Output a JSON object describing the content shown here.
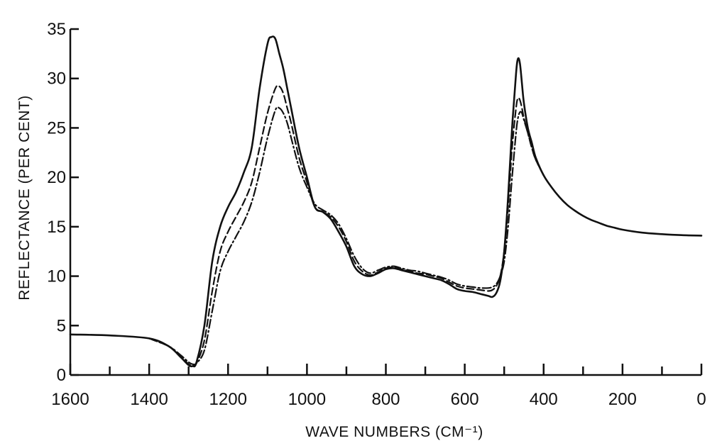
{
  "chart_data": {
    "type": "line",
    "xlabel": "WAVE NUMBERS (CM⁻¹)",
    "ylabel": "REFLECTANCE (PER CENT)",
    "xlim": [
      1600,
      0
    ],
    "ylim": [
      0,
      35
    ],
    "x_ticks": [
      1600,
      1400,
      1200,
      1000,
      800,
      600,
      400,
      200,
      0
    ],
    "y_ticks": [
      0,
      5,
      10,
      15,
      20,
      25,
      30,
      35
    ],
    "x_tick_labels": [
      "1600",
      "1400",
      "1200",
      "1000",
      "800",
      "600",
      "400",
      "200",
      "0"
    ],
    "y_tick_labels": [
      "0",
      "5",
      "10",
      "15",
      "20",
      "25",
      "30",
      "35"
    ],
    "grid": false,
    "series": [
      {
        "style": "solid",
        "x": [
          1600,
          1500,
          1400,
          1350,
          1320,
          1300,
          1290,
          1280,
          1260,
          1240,
          1220,
          1200,
          1180,
          1160,
          1140,
          1120,
          1100,
          1090,
          1080,
          1070,
          1060,
          1050,
          1040,
          1020,
          1000,
          980,
          960,
          940,
          920,
          900,
          880,
          860,
          840,
          820,
          800,
          780,
          760,
          740,
          720,
          700,
          680,
          660,
          640,
          620,
          600,
          580,
          560,
          540,
          530,
          520,
          510,
          500,
          490,
          480,
          470,
          465,
          460,
          455,
          450,
          440,
          430,
          420,
          400,
          380,
          360,
          340,
          320,
          300,
          280,
          260,
          240,
          220,
          200,
          150,
          100,
          50,
          0
        ],
        "y": [
          4.1,
          4.0,
          3.7,
          2.9,
          1.8,
          1.0,
          0.9,
          1.3,
          5.0,
          11.5,
          15.0,
          17.0,
          18.5,
          20.5,
          23.0,
          29.0,
          33.5,
          34.2,
          34.0,
          32.5,
          31.0,
          29.0,
          27.0,
          23.0,
          20.0,
          17.0,
          16.5,
          15.8,
          14.5,
          13.0,
          11.0,
          10.2,
          10.0,
          10.3,
          10.7,
          10.8,
          10.6,
          10.4,
          10.2,
          10.0,
          9.8,
          9.6,
          9.2,
          8.7,
          8.5,
          8.4,
          8.2,
          8.0,
          7.9,
          8.3,
          9.5,
          12.5,
          18.0,
          25.0,
          30.5,
          32.0,
          31.5,
          29.5,
          27.5,
          25.0,
          23.5,
          22.0,
          20.2,
          19.0,
          18.0,
          17.2,
          16.6,
          16.1,
          15.7,
          15.4,
          15.1,
          14.9,
          14.7,
          14.4,
          14.25,
          14.15,
          14.1
        ]
      },
      {
        "style": "dashed",
        "x": [
          1400,
          1350,
          1320,
          1300,
          1290,
          1280,
          1260,
          1240,
          1220,
          1200,
          1180,
          1160,
          1140,
          1120,
          1100,
          1080,
          1070,
          1060,
          1050,
          1040,
          1020,
          1000,
          980,
          960,
          940,
          920,
          900,
          880,
          860,
          840,
          820,
          800,
          780,
          760,
          740,
          720,
          700,
          680,
          660,
          640,
          620,
          600,
          580,
          560,
          540,
          530,
          520,
          510,
          500,
          490,
          480,
          470,
          465,
          460,
          455,
          450,
          440,
          430,
          420,
          400
        ],
        "y": [
          3.7,
          2.9,
          1.9,
          1.1,
          1.0,
          1.2,
          3.5,
          8.5,
          12.5,
          14.5,
          16.0,
          17.5,
          19.5,
          23.0,
          26.5,
          29.0,
          29.2,
          28.5,
          27.0,
          25.5,
          22.0,
          19.5,
          17.0,
          16.5,
          16.0,
          15.0,
          13.5,
          11.5,
          10.5,
          10.1,
          10.4,
          10.8,
          10.9,
          10.7,
          10.5,
          10.3,
          10.2,
          10.0,
          9.8,
          9.4,
          9.0,
          8.8,
          8.7,
          8.6,
          8.5,
          8.6,
          9.0,
          10.0,
          12.5,
          17.0,
          23.0,
          27.0,
          28.0,
          27.8,
          27.0,
          26.0,
          24.5,
          23.0,
          21.8,
          20.2
        ]
      },
      {
        "style": "dash-dot",
        "x": [
          1400,
          1350,
          1320,
          1300,
          1290,
          1280,
          1260,
          1240,
          1220,
          1200,
          1180,
          1160,
          1140,
          1120,
          1100,
          1080,
          1070,
          1060,
          1050,
          1040,
          1020,
          1000,
          980,
          960,
          940,
          920,
          900,
          880,
          860,
          840,
          820,
          800,
          780,
          760,
          740,
          720,
          700,
          680,
          660,
          640,
          620,
          600,
          580,
          560,
          540,
          530,
          520,
          510,
          500,
          490,
          480,
          470,
          465,
          460,
          455,
          450,
          440,
          430,
          420,
          400
        ],
        "y": [
          3.7,
          2.9,
          2.0,
          1.3,
          1.1,
          1.2,
          2.5,
          6.5,
          10.5,
          12.5,
          14.0,
          15.5,
          17.5,
          20.5,
          24.0,
          26.8,
          27.0,
          26.5,
          25.5,
          24.0,
          21.0,
          19.0,
          17.3,
          16.7,
          16.2,
          15.3,
          13.8,
          12.0,
          10.8,
          10.3,
          10.6,
          10.9,
          11.0,
          10.8,
          10.6,
          10.5,
          10.3,
          10.1,
          9.9,
          9.6,
          9.2,
          9.0,
          8.9,
          8.8,
          8.8,
          8.9,
          9.2,
          10.0,
          11.5,
          15.0,
          20.0,
          24.5,
          26.0,
          26.6,
          26.5,
          25.8,
          24.5,
          23.0,
          21.8,
          20.2
        ]
      }
    ]
  }
}
